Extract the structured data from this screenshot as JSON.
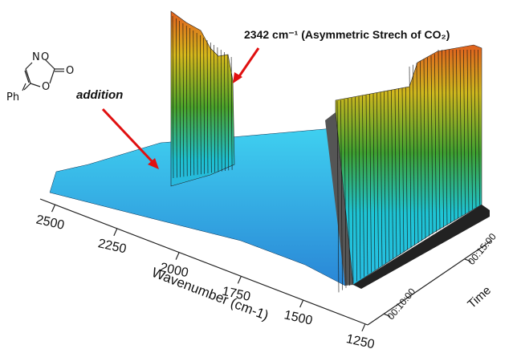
{
  "chart_data": {
    "type": "surface3d",
    "annotations": [
      "2342 cm⁻¹ (Asymmetric Strech of CO₂)",
      "addition"
    ],
    "xlabel": "Wavenumber (cm-1)",
    "ylabel": "Time",
    "xlim": [
      2560,
      1240
    ],
    "xticks": [
      2500,
      2250,
      2000,
      1750,
      1500,
      1250
    ],
    "ylim": [
      540,
      1000
    ],
    "yticks": [
      {
        "value": 600,
        "label": "00:10:00"
      },
      {
        "value": 900,
        "label": "00:15:00"
      }
    ],
    "structure": {
      "atoms": [
        "N",
        "O",
        "O",
        "O",
        "Ph"
      ]
    }
  }
}
